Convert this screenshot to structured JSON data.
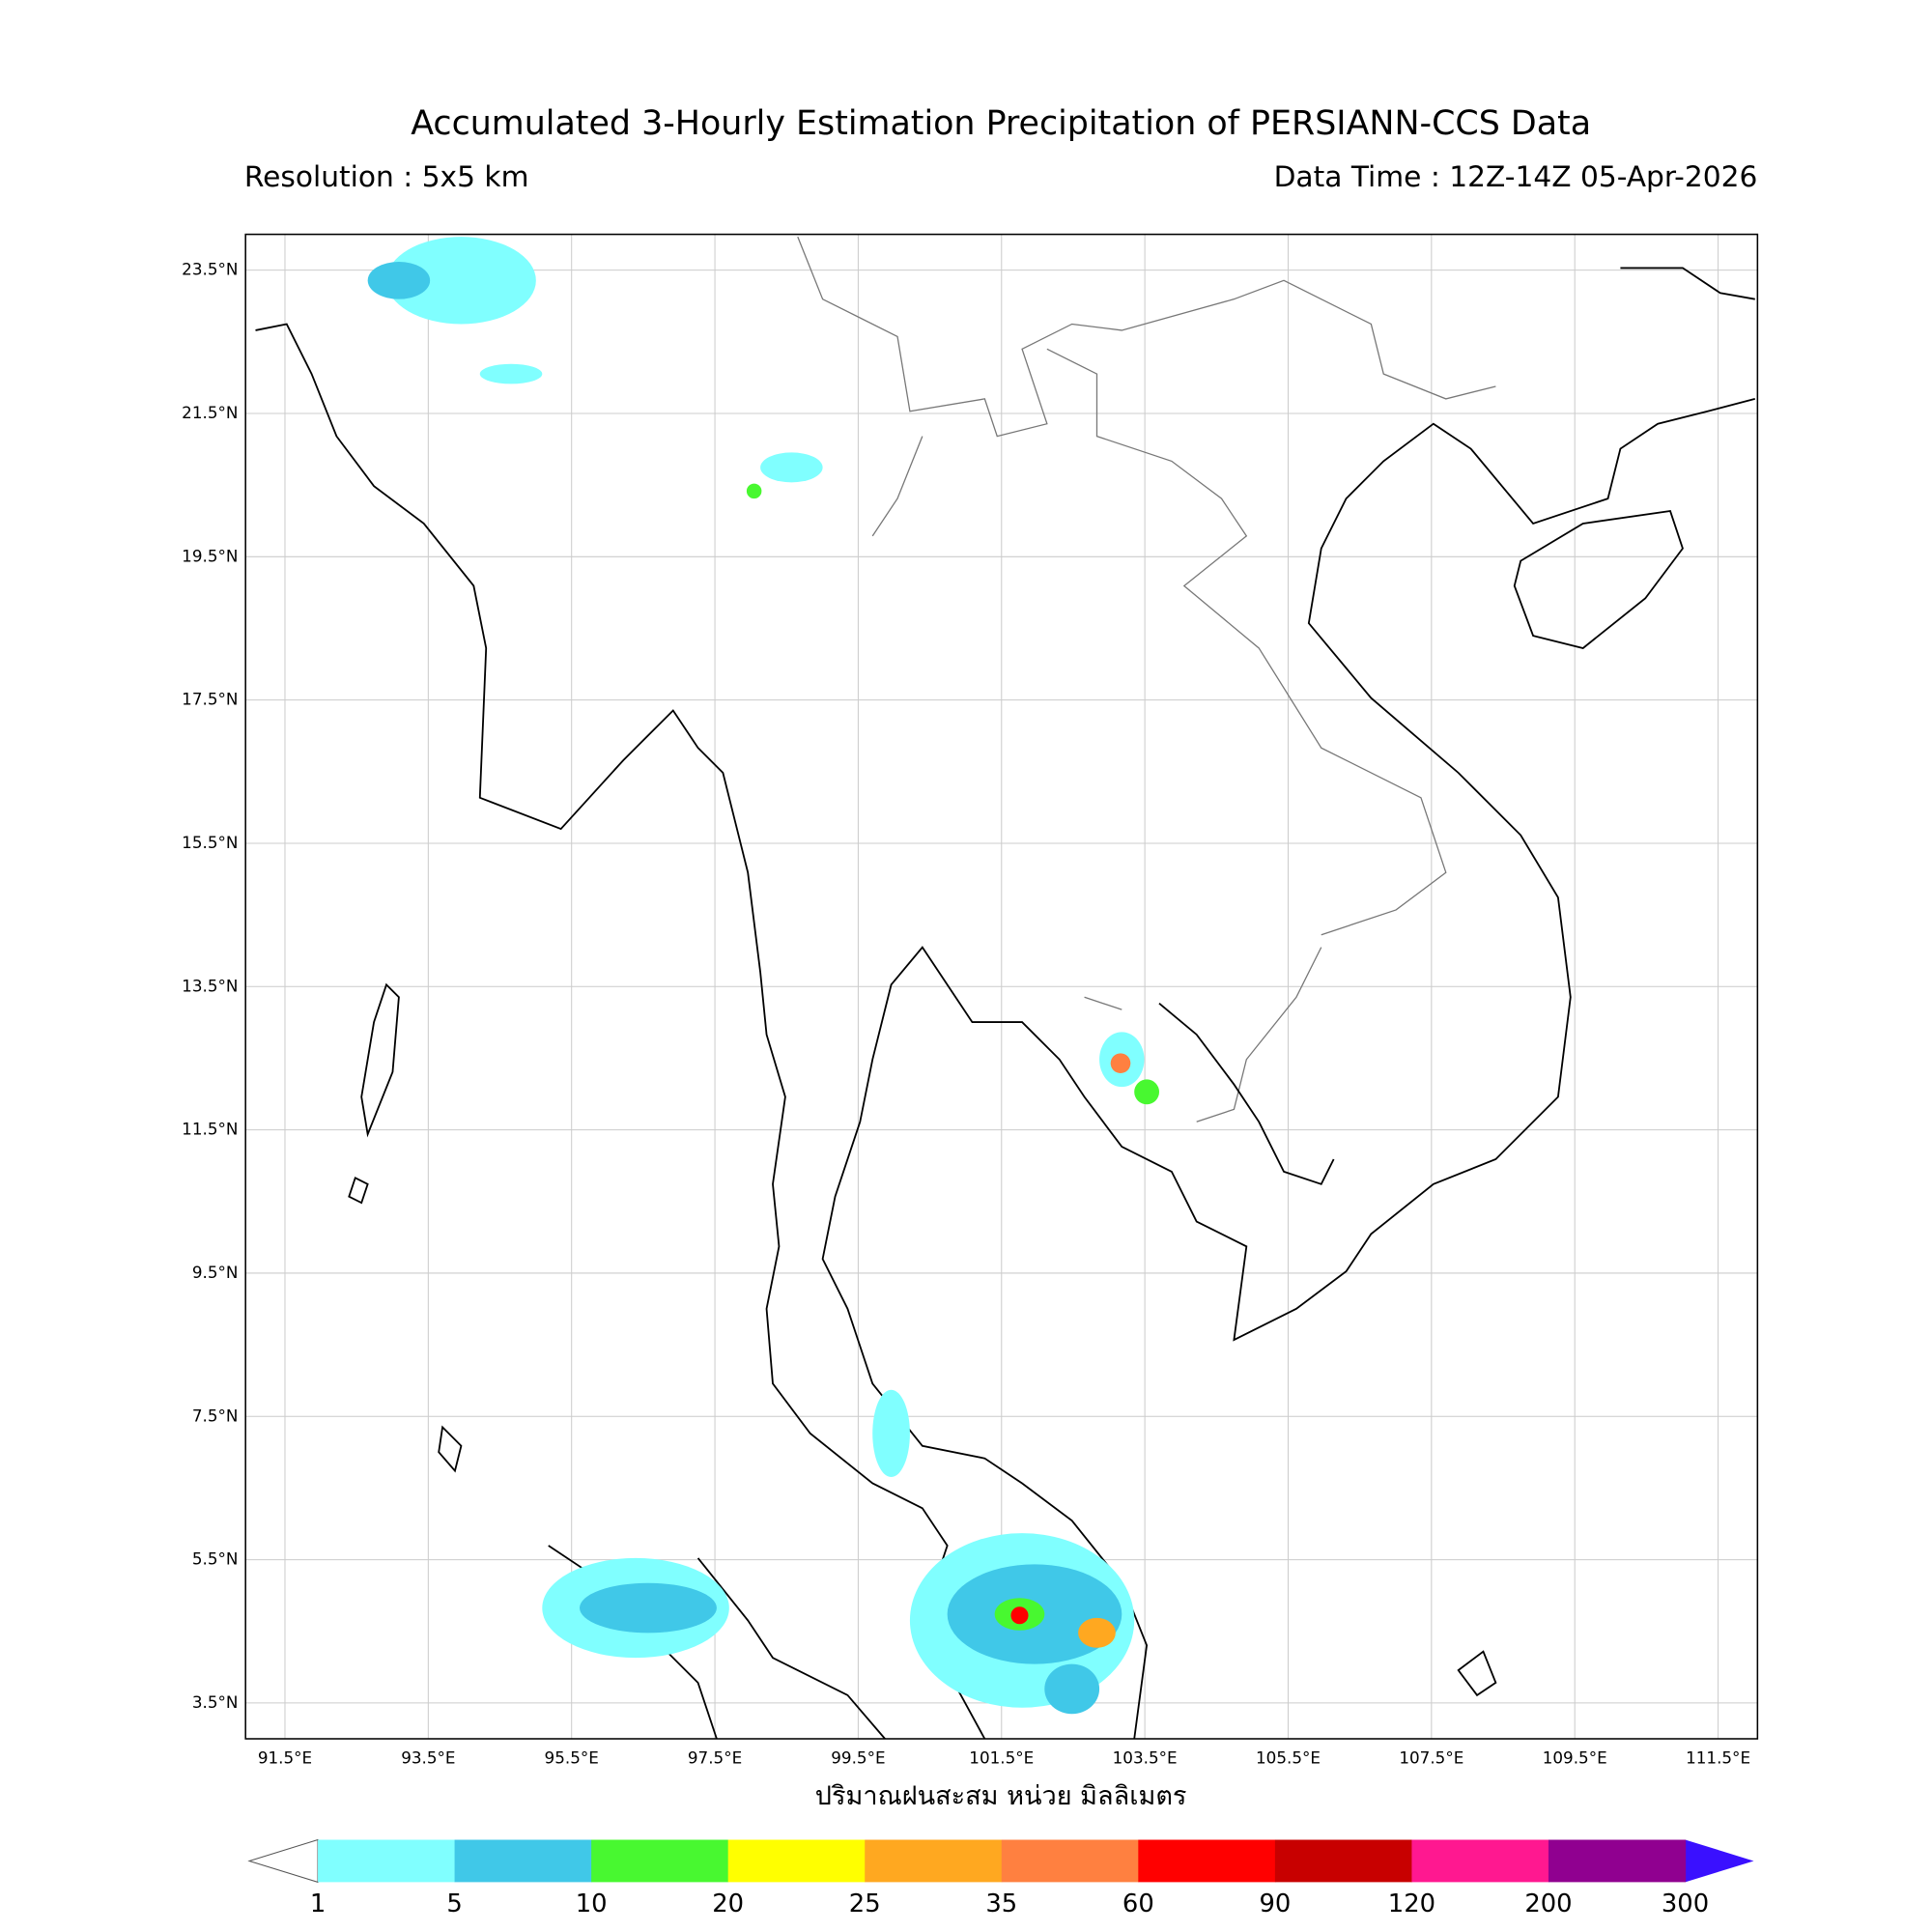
{
  "header": {
    "title": "Accumulated 3-Hourly Estimation Precipitation of PERSIANN-CCS Data",
    "resolution": "Resolution : 5x5 km",
    "data_time": "Data Time : 12Z-14Z 05-Apr-2026"
  },
  "map": {
    "lon_lim": [
      90.95,
      112.05
    ],
    "lat_lim": [
      3.0,
      24.0
    ],
    "lat_ticks": [
      {
        "value": 23.5,
        "label": "23.5°N"
      },
      {
        "value": 21.5,
        "label": "21.5°N"
      },
      {
        "value": 19.5,
        "label": "19.5°N"
      },
      {
        "value": 17.5,
        "label": "17.5°N"
      },
      {
        "value": 15.5,
        "label": "15.5°N"
      },
      {
        "value": 13.5,
        "label": "13.5°N"
      },
      {
        "value": 11.5,
        "label": "11.5°N"
      },
      {
        "value": 9.5,
        "label": "9.5°N"
      },
      {
        "value": 7.5,
        "label": "7.5°N"
      },
      {
        "value": 5.5,
        "label": "5.5°N"
      },
      {
        "value": 3.5,
        "label": "3.5°N"
      }
    ],
    "lon_ticks": [
      {
        "value": 91.5,
        "label": "91.5°E"
      },
      {
        "value": 93.5,
        "label": "93.5°E"
      },
      {
        "value": 95.5,
        "label": "95.5°E"
      },
      {
        "value": 97.5,
        "label": "97.5°E"
      },
      {
        "value": 99.5,
        "label": "99.5°E"
      },
      {
        "value": 101.5,
        "label": "101.5°E"
      },
      {
        "value": 103.5,
        "label": "103.5°E"
      },
      {
        "value": 105.5,
        "label": "105.5°E"
      },
      {
        "value": 107.5,
        "label": "107.5°E"
      },
      {
        "value": 109.5,
        "label": "109.5°E"
      },
      {
        "value": 111.5,
        "label": "111.5°E"
      }
    ],
    "x_label": "ปริมาณฝนสะสม หน่วย มิลลิเมตร"
  },
  "colorbar": {
    "levels": [
      1,
      5,
      10,
      20,
      25,
      35,
      60,
      90,
      120,
      200,
      300
    ],
    "colors": [
      "#80ffff",
      "#40c8e8",
      "#48f830",
      "#ffff00",
      "#ffa820",
      "#ff8040",
      "#ff0000",
      "#c80000",
      "#ff1890",
      "#900090"
    ],
    "under_color": "#ffffff",
    "over_color": "#3a10ff"
  }
}
